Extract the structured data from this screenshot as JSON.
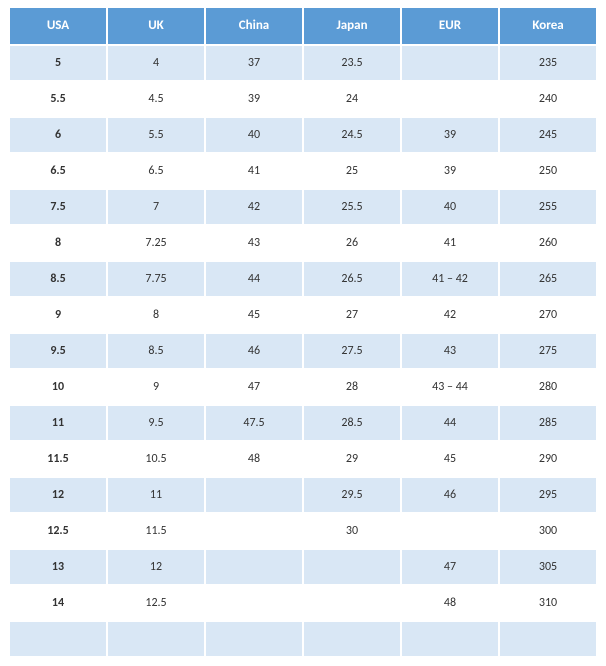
{
  "table": {
    "type": "table",
    "header_bg": "#5b9bd5",
    "header_fg": "#ffffff",
    "row_odd_bg": "#d9e7f5",
    "row_even_bg": "#ffffff",
    "first_col_bold": true,
    "columns": [
      "USA",
      "UK",
      "China",
      "Japan",
      "EUR",
      "Korea"
    ],
    "rows": [
      [
        "5",
        "4",
        "37",
        "23.5",
        "",
        "235"
      ],
      [
        "5.5",
        "4.5",
        "39",
        "24",
        "",
        "240"
      ],
      [
        "6",
        "5.5",
        "40",
        "24.5",
        "39",
        "245"
      ],
      [
        "6.5",
        "6.5",
        "41",
        "25",
        "39",
        "250"
      ],
      [
        "7.5",
        "7",
        "42",
        "25.5",
        "40",
        "255"
      ],
      [
        "8",
        "7.25",
        "43",
        "26",
        "41",
        "260"
      ],
      [
        "8.5",
        "7.75",
        "44",
        "26.5",
        "41 – 42",
        "265"
      ],
      [
        "9",
        "8",
        "45",
        "27",
        "42",
        "270"
      ],
      [
        "9.5",
        "8.5",
        "46",
        "27.5",
        "43",
        "275"
      ],
      [
        "10",
        "9",
        "47",
        "28",
        "43 – 44",
        "280"
      ],
      [
        "11",
        "9.5",
        "47.5",
        "28.5",
        "44",
        "285"
      ],
      [
        "11.5",
        "10.5",
        "48",
        "29",
        "45",
        "290"
      ],
      [
        "12",
        "11",
        "",
        "29.5",
        "46",
        "295"
      ],
      [
        "12.5",
        "11.5",
        "",
        "30",
        "",
        "300"
      ],
      [
        "13",
        "12",
        "",
        "",
        "47",
        "305"
      ],
      [
        "14",
        "12.5",
        "",
        "",
        "48",
        "310"
      ],
      [
        "",
        "",
        "",
        "",
        "",
        ""
      ]
    ]
  }
}
